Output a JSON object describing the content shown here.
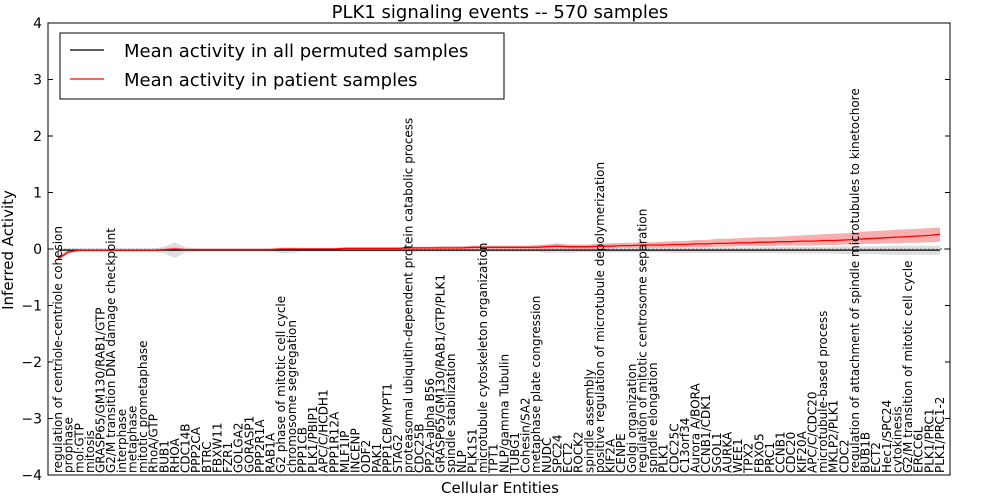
{
  "colors": {
    "patient_line": "#ff0000",
    "patient_band": "#f4a0a0",
    "permuted_line": "#000000",
    "permuted_band": "#d0d0d0",
    "axis": "#000000",
    "background": "#ffffff"
  },
  "chart_data": {
    "type": "line",
    "title": "PLK1 signaling events -- 570 samples",
    "xlabel": "Cellular Entities",
    "ylabel": "Inferred Activity",
    "ylim": [
      -4,
      4
    ],
    "yticks": [
      -4,
      -3,
      -2,
      -1,
      0,
      1,
      2,
      3,
      4
    ],
    "ytick_labels": [
      "−4",
      "−3",
      "−2",
      "−1",
      "0",
      "1",
      "2",
      "3",
      "4"
    ],
    "grid": false,
    "legend": {
      "position": "top-left",
      "entries": [
        {
          "label": "Mean activity in all permuted samples",
          "color": "#000000"
        },
        {
          "label": "Mean activity in patient samples",
          "color": "#ff0000"
        }
      ]
    },
    "categories": [
      "regulation of centriole-centriole cohesion",
      "prophase",
      "mol:GTP",
      "mitosis",
      "GRASP65/GM130/RAB1/GTP",
      "G2/M transition DNA damage checkpoint",
      "interphase",
      "metaphase",
      "mitotic prometaphase",
      "RhoA/GTP",
      "BUB1",
      "RHOA",
      "CDC14B",
      "PPP2CA",
      "BTRC",
      "FBXW11",
      "FZR1",
      "GOLGA2",
      "GORASP1",
      "PPP2R1A",
      "RAB1A",
      "G2 phase of mitotic cell cycle",
      "chromosome segregation",
      "PPP1CB",
      "PLK1/PBIP1",
      "APC/C/HCDH1",
      "PPP1R12A",
      "MLF1IP",
      "INCENP",
      "ODF2",
      "PAK1",
      "PPP1CB/MYPT1",
      "STAG2",
      "proteasomal ubiquitin-dependent protein catabolic process",
      "CDC25B",
      "PP2A-alpha B56",
      "GRASP65/GM130/RAB1/GTP/PLK1",
      "spindle stabilization",
      "NLP",
      "PLK1S1",
      "microtubule cytoskeleton organization",
      "TPT1",
      "NLP/gamma Tubulin",
      "TUBG1",
      "Cohesin/SA2",
      "metaphase plate congression",
      "NUDC",
      "SPC24",
      "ECT2",
      "ROCK2",
      "spindle assembly",
      "positive regulation of microtubule depolymerization",
      "KIF2A",
      "CENPE",
      "Golgi organization",
      "regulation of mitotic centrosome separation",
      "spindle elongation",
      "PLK1",
      "CDC25C",
      "C13orf34",
      "Aurora A/BORA",
      "CCNB1/CDK1",
      "SGOL1",
      "AURKA",
      "WEE1",
      "TPX2",
      "FBXO5",
      "PRC1",
      "CCNB1",
      "CDC20",
      "KIF20A",
      "APC/C/CDC20",
      "microtubule-based process",
      "MKLP2/PLK1",
      "CDC2",
      "regulation of attachment of spindle microtubules to kinetochore",
      "BUB1B",
      "ECT2",
      "Hec1/SPC24",
      "cytokinesis",
      "G2/M transition of mitotic cell cycle",
      "ERCC6L",
      "PLK1/PRC1",
      "PLK1/PRC1-2"
    ],
    "series": [
      {
        "name": "Mean activity in all permuted samples",
        "values": [
          -0.02,
          -0.02,
          -0.02,
          -0.02,
          -0.02,
          -0.02,
          -0.02,
          -0.02,
          -0.02,
          -0.02,
          -0.02,
          -0.02,
          -0.02,
          -0.02,
          -0.02,
          -0.02,
          -0.02,
          -0.02,
          -0.02,
          -0.02,
          -0.02,
          -0.02,
          -0.02,
          -0.02,
          -0.02,
          -0.02,
          -0.02,
          -0.02,
          -0.02,
          -0.02,
          -0.02,
          -0.02,
          -0.02,
          -0.02,
          -0.02,
          -0.02,
          -0.02,
          -0.02,
          -0.02,
          -0.02,
          -0.02,
          -0.02,
          -0.02,
          -0.02,
          -0.02,
          -0.02,
          -0.02,
          -0.02,
          -0.02,
          -0.02,
          -0.02,
          -0.02,
          -0.02,
          -0.02,
          -0.02,
          -0.02,
          -0.02,
          -0.02,
          -0.02,
          -0.02,
          -0.02,
          -0.02,
          -0.02,
          -0.02,
          -0.02,
          -0.02,
          -0.02,
          -0.02,
          -0.02,
          -0.02,
          -0.02,
          -0.02,
          -0.02,
          -0.02,
          -0.02,
          -0.02,
          -0.02,
          -0.02,
          -0.02,
          -0.02,
          -0.02,
          -0.02,
          -0.02,
          -0.02
        ],
        "lower": [
          -0.05,
          -0.05,
          -0.05,
          -0.05,
          -0.05,
          -0.05,
          -0.05,
          -0.05,
          -0.05,
          -0.05,
          -0.08,
          -0.16,
          -0.06,
          -0.05,
          -0.05,
          -0.05,
          -0.05,
          -0.05,
          -0.05,
          -0.05,
          -0.05,
          -0.07,
          -0.07,
          -0.05,
          -0.05,
          -0.05,
          -0.05,
          -0.05,
          -0.05,
          -0.05,
          -0.05,
          -0.05,
          -0.05,
          -0.06,
          -0.05,
          -0.05,
          -0.05,
          -0.05,
          -0.05,
          -0.05,
          -0.05,
          -0.05,
          -0.05,
          -0.05,
          -0.05,
          -0.05,
          -0.07,
          -0.06,
          -0.07,
          -0.06,
          -0.06,
          -0.07,
          -0.06,
          -0.06,
          -0.06,
          -0.06,
          -0.06,
          -0.06,
          -0.07,
          -0.07,
          -0.07,
          -0.07,
          -0.07,
          -0.07,
          -0.07,
          -0.07,
          -0.07,
          -0.07,
          -0.08,
          -0.08,
          -0.08,
          -0.08,
          -0.08,
          -0.08,
          -0.09,
          -0.09,
          -0.09,
          -0.09,
          -0.1,
          -0.1,
          -0.1,
          -0.1,
          -0.1,
          -0.1
        ],
        "upper": [
          0.01,
          0.01,
          0.01,
          0.01,
          0.01,
          0.01,
          0.01,
          0.01,
          0.01,
          0.01,
          0.04,
          0.12,
          0.03,
          0.01,
          0.01,
          0.01,
          0.01,
          0.01,
          0.01,
          0.01,
          0.01,
          0.03,
          0.03,
          0.01,
          0.01,
          0.01,
          0.01,
          0.01,
          0.01,
          0.01,
          0.01,
          0.01,
          0.01,
          0.02,
          0.01,
          0.01,
          0.01,
          0.01,
          0.01,
          0.01,
          0.01,
          0.01,
          0.01,
          0.01,
          0.01,
          0.01,
          0.03,
          0.02,
          0.03,
          0.02,
          0.02,
          0.03,
          0.02,
          0.02,
          0.02,
          0.02,
          0.02,
          0.02,
          0.03,
          0.03,
          0.03,
          0.03,
          0.03,
          0.03,
          0.03,
          0.03,
          0.03,
          0.03,
          0.04,
          0.04,
          0.04,
          0.04,
          0.04,
          0.04,
          0.05,
          0.05,
          0.05,
          0.05,
          0.06,
          0.06,
          0.06,
          0.06,
          0.06,
          0.06
        ]
      },
      {
        "name": "Mean activity in patient samples",
        "values": [
          -0.17,
          -0.05,
          -0.02,
          -0.02,
          -0.02,
          -0.02,
          -0.02,
          -0.02,
          -0.02,
          -0.02,
          -0.01,
          0.0,
          -0.01,
          -0.01,
          -0.01,
          -0.01,
          -0.01,
          -0.01,
          -0.01,
          -0.01,
          -0.01,
          0.0,
          0.0,
          0.0,
          0.0,
          0.0,
          0.0,
          0.01,
          0.01,
          0.01,
          0.01,
          0.01,
          0.01,
          0.02,
          0.02,
          0.02,
          0.02,
          0.02,
          0.02,
          0.03,
          0.03,
          0.03,
          0.03,
          0.03,
          0.03,
          0.03,
          0.04,
          0.05,
          0.04,
          0.04,
          0.04,
          0.05,
          0.05,
          0.06,
          0.06,
          0.07,
          0.07,
          0.07,
          0.08,
          0.08,
          0.09,
          0.09,
          0.1,
          0.1,
          0.11,
          0.11,
          0.12,
          0.12,
          0.13,
          0.13,
          0.14,
          0.14,
          0.15,
          0.15,
          0.16,
          0.17,
          0.18,
          0.19,
          0.2,
          0.21,
          0.22,
          0.23,
          0.24,
          0.26
        ],
        "lower": [
          -0.2,
          -0.08,
          -0.04,
          -0.04,
          -0.04,
          -0.04,
          -0.04,
          -0.04,
          -0.04,
          -0.04,
          -0.03,
          -0.02,
          -0.03,
          -0.03,
          -0.03,
          -0.03,
          -0.03,
          -0.03,
          -0.03,
          -0.03,
          -0.03,
          -0.02,
          -0.02,
          -0.02,
          -0.02,
          -0.02,
          -0.02,
          -0.01,
          -0.01,
          -0.01,
          -0.01,
          -0.01,
          -0.01,
          0.0,
          0.0,
          0.0,
          0.0,
          0.0,
          0.0,
          0.0,
          0.0,
          0.0,
          0.0,
          0.0,
          0.0,
          0.0,
          0.0,
          0.01,
          0.0,
          0.0,
          0.0,
          0.01,
          0.01,
          0.02,
          0.02,
          0.02,
          0.02,
          0.02,
          0.03,
          0.03,
          0.03,
          0.03,
          0.04,
          0.04,
          0.05,
          0.05,
          0.05,
          0.05,
          0.06,
          0.06,
          0.06,
          0.06,
          0.07,
          0.07,
          0.08,
          0.08,
          0.09,
          0.09,
          0.1,
          0.1,
          0.11,
          0.11,
          0.12,
          0.13
        ],
        "upper": [
          -0.13,
          -0.02,
          0.0,
          0.0,
          0.0,
          0.0,
          0.0,
          0.0,
          0.0,
          0.0,
          0.01,
          0.03,
          0.01,
          0.01,
          0.01,
          0.01,
          0.01,
          0.01,
          0.01,
          0.01,
          0.01,
          0.02,
          0.02,
          0.02,
          0.02,
          0.02,
          0.02,
          0.03,
          0.03,
          0.03,
          0.03,
          0.03,
          0.03,
          0.04,
          0.04,
          0.04,
          0.05,
          0.05,
          0.05,
          0.06,
          0.06,
          0.06,
          0.06,
          0.06,
          0.06,
          0.07,
          0.08,
          0.1,
          0.08,
          0.08,
          0.08,
          0.1,
          0.1,
          0.11,
          0.11,
          0.12,
          0.12,
          0.13,
          0.14,
          0.14,
          0.16,
          0.16,
          0.18,
          0.18,
          0.19,
          0.2,
          0.21,
          0.21,
          0.22,
          0.23,
          0.24,
          0.25,
          0.26,
          0.27,
          0.28,
          0.29,
          0.31,
          0.32,
          0.33,
          0.34,
          0.35,
          0.36,
          0.37,
          0.38
        ]
      }
    ]
  }
}
